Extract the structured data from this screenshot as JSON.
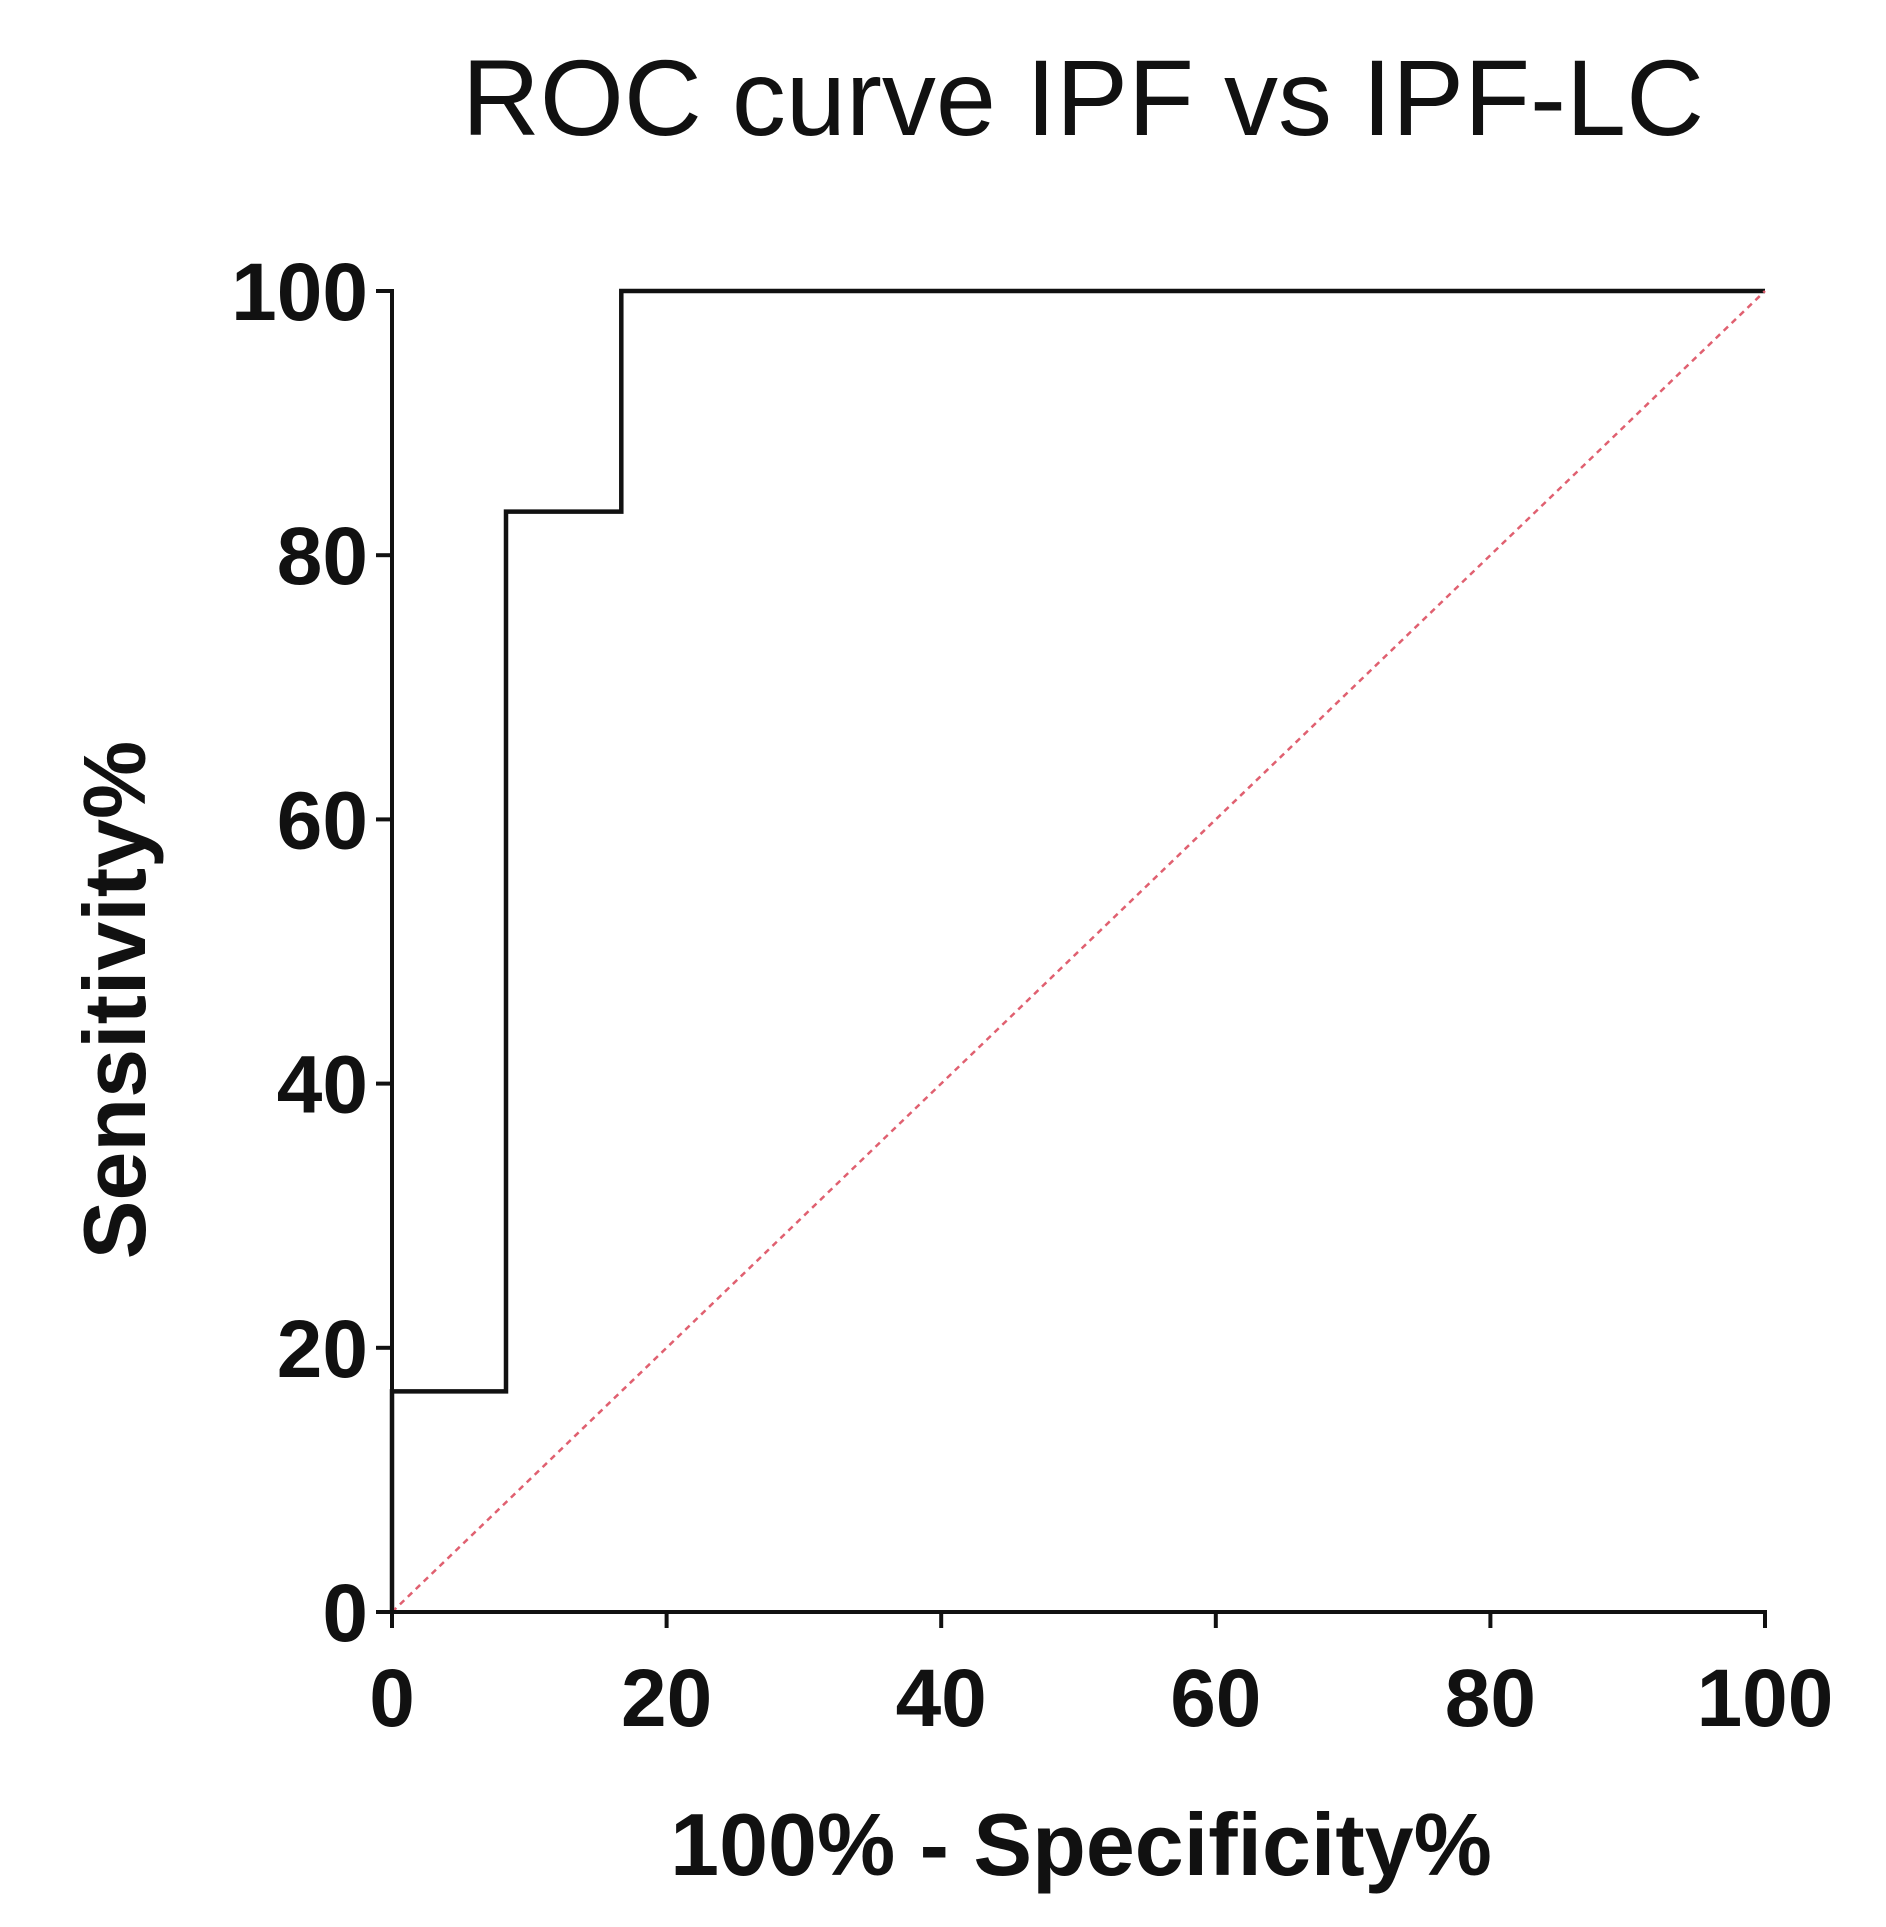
{
  "chart_data": {
    "type": "line",
    "title": "ROC curve IPF vs IPF-LC",
    "xlabel": "100% - Specificity%",
    "ylabel": "Sensitivity%",
    "xlim": [
      0,
      100
    ],
    "ylim": [
      0,
      100
    ],
    "x_ticks": [
      0,
      20,
      40,
      60,
      80,
      100
    ],
    "y_ticks": [
      0,
      20,
      40,
      60,
      80,
      100
    ],
    "grid": false,
    "legend": "none",
    "series": [
      {
        "style": "step",
        "color": "#111111",
        "points": [
          [
            0,
            0
          ],
          [
            0,
            16.7
          ],
          [
            8.3,
            16.7
          ],
          [
            8.3,
            83.3
          ],
          [
            16.7,
            83.3
          ],
          [
            16.7,
            100
          ],
          [
            100,
            100
          ]
        ]
      },
      {
        "style": "dotted",
        "color": "#e06070",
        "points": [
          [
            0,
            0
          ],
          [
            100,
            100
          ]
        ]
      }
    ]
  }
}
